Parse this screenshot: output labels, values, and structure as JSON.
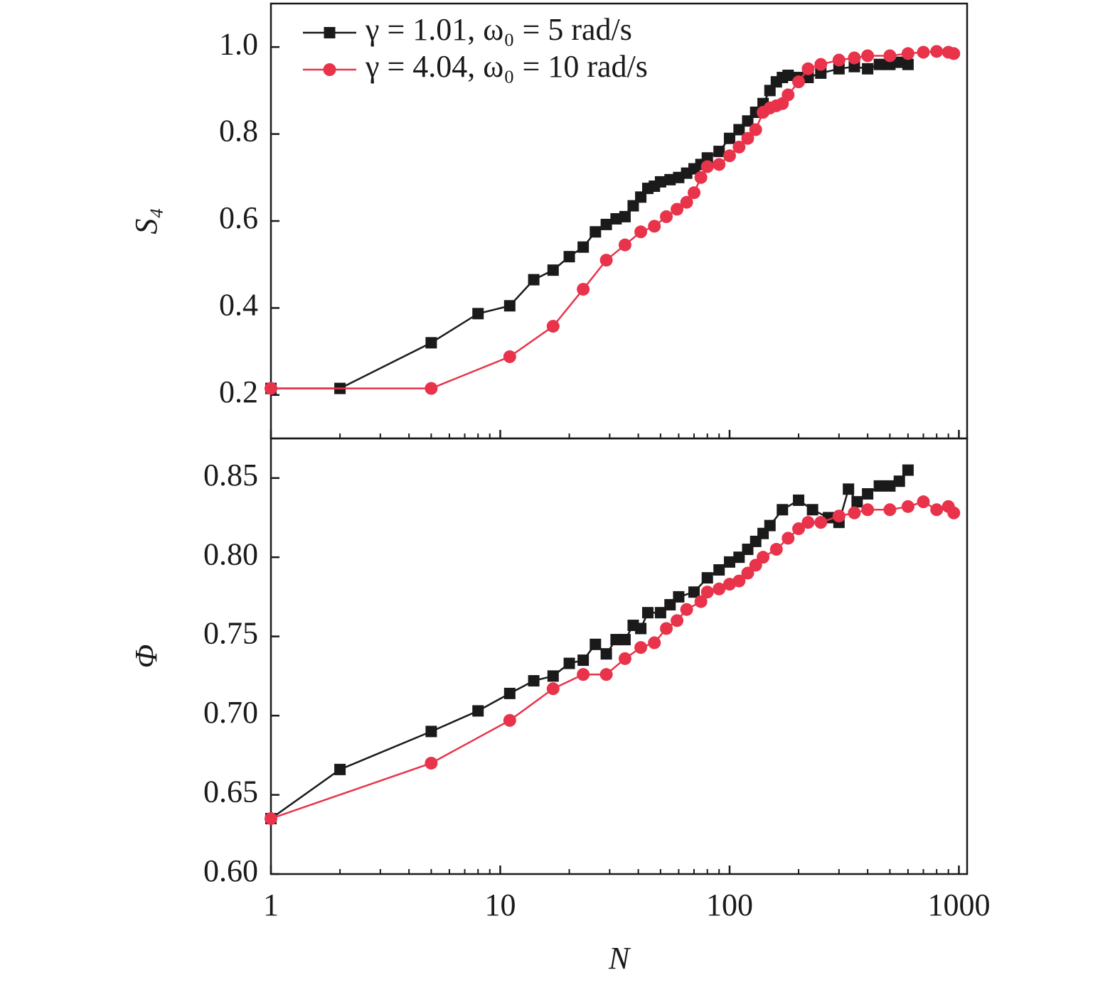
{
  "chart_data": [
    {
      "type": "line",
      "ylabel": "S₄",
      "xscale": "log",
      "xlim": [
        1,
        1086
      ],
      "ylim": [
        0.1,
        1.1
      ],
      "yticks": [
        0.2,
        0.4,
        0.6,
        0.8,
        {
          "value": 1,
          "label": "1.0"
        }
      ],
      "xticks": [
        1,
        10,
        100,
        1000
      ],
      "minor_xticks": [
        2,
        3,
        4,
        5,
        6,
        7,
        8,
        9,
        20,
        30,
        40,
        50,
        60,
        70,
        80,
        90,
        200,
        300,
        400,
        500,
        600,
        700,
        800,
        900
      ],
      "legend": "upper left",
      "series": [
        {
          "name": "γ = 1.01, ω₀ = 5 rad/s",
          "color": "#1a1a1a",
          "marker": "square",
          "x": [
            1,
            2,
            5,
            8,
            11,
            14,
            17,
            20,
            23,
            26,
            29,
            32,
            35,
            38,
            41,
            44,
            47,
            50,
            55,
            60,
            65,
            70,
            75,
            80,
            90,
            100,
            110,
            120,
            130,
            140,
            150,
            160,
            170,
            180,
            200,
            220,
            250,
            300,
            350,
            400,
            450,
            500,
            550,
            600
          ],
          "values": [
            0.215,
            0.215,
            0.32,
            0.387,
            0.405,
            0.465,
            0.487,
            0.518,
            0.54,
            0.575,
            0.592,
            0.605,
            0.61,
            0.635,
            0.655,
            0.675,
            0.68,
            0.69,
            0.695,
            0.7,
            0.71,
            0.72,
            0.73,
            0.745,
            0.76,
            0.79,
            0.81,
            0.83,
            0.85,
            0.87,
            0.9,
            0.92,
            0.93,
            0.935,
            0.93,
            0.93,
            0.94,
            0.95,
            0.955,
            0.95,
            0.96,
            0.96,
            0.965,
            0.96
          ]
        },
        {
          "name": "γ = 4.04, ω₀ = 10 rad/s",
          "color": "#e8334a",
          "marker": "circle",
          "x": [
            1,
            5,
            11,
            17,
            23,
            29,
            35,
            41,
            47,
            53,
            59,
            65,
            70,
            75,
            80,
            90,
            100,
            110,
            120,
            130,
            140,
            150,
            160,
            170,
            180,
            200,
            220,
            250,
            300,
            350,
            400,
            500,
            600,
            700,
            800,
            900,
            950
          ],
          "values": [
            0.215,
            0.215,
            0.288,
            0.358,
            0.443,
            0.51,
            0.545,
            0.575,
            0.588,
            0.61,
            0.627,
            0.643,
            0.665,
            0.7,
            0.725,
            0.73,
            0.75,
            0.77,
            0.79,
            0.81,
            0.85,
            0.86,
            0.865,
            0.87,
            0.89,
            0.92,
            0.95,
            0.96,
            0.97,
            0.975,
            0.98,
            0.98,
            0.985,
            0.988,
            0.99,
            0.988,
            0.985
          ]
        }
      ]
    },
    {
      "type": "line",
      "ylabel": "Φ",
      "xlabel": "N",
      "xscale": "log",
      "xlim": [
        1,
        1086
      ],
      "ylim": [
        0.6,
        0.875
      ],
      "yticks": [
        {
          "value": 0.6,
          "label": "0.60"
        },
        0.65,
        {
          "value": 0.7,
          "label": "0.70"
        },
        0.75,
        {
          "value": 0.8,
          "label": "0.80"
        },
        0.85
      ],
      "xticks": [
        1,
        10,
        100,
        1000
      ],
      "minor_xticks": [
        2,
        3,
        4,
        5,
        6,
        7,
        8,
        9,
        20,
        30,
        40,
        50,
        60,
        70,
        80,
        90,
        200,
        300,
        400,
        500,
        600,
        700,
        800,
        900
      ],
      "series": [
        {
          "name": "γ = 1.01, ω₀ = 5 rad/s",
          "color": "#1a1a1a",
          "marker": "square",
          "x": [
            1,
            2,
            5,
            8,
            11,
            14,
            17,
            20,
            23,
            26,
            29,
            32,
            35,
            38,
            41,
            44,
            50,
            55,
            60,
            70,
            80,
            90,
            100,
            110,
            120,
            130,
            140,
            150,
            170,
            200,
            230,
            270,
            300,
            330,
            360,
            400,
            450,
            500,
            550,
            600
          ],
          "values": [
            0.635,
            0.666,
            0.69,
            0.703,
            0.714,
            0.722,
            0.725,
            0.733,
            0.735,
            0.745,
            0.739,
            0.748,
            0.748,
            0.757,
            0.755,
            0.765,
            0.765,
            0.77,
            0.775,
            0.778,
            0.787,
            0.792,
            0.797,
            0.8,
            0.805,
            0.81,
            0.815,
            0.82,
            0.83,
            0.836,
            0.83,
            0.825,
            0.822,
            0.843,
            0.835,
            0.84,
            0.845,
            0.845,
            0.848,
            0.855
          ]
        },
        {
          "name": "γ = 4.04, ω₀ = 10 rad/s",
          "color": "#e8334a",
          "marker": "circle",
          "x": [
            1,
            5,
            11,
            17,
            23,
            29,
            35,
            41,
            47,
            53,
            59,
            65,
            75,
            80,
            90,
            100,
            110,
            120,
            130,
            140,
            160,
            180,
            200,
            220,
            250,
            300,
            350,
            400,
            500,
            600,
            700,
            800,
            900,
            950
          ],
          "values": [
            0.635,
            0.67,
            0.697,
            0.717,
            0.726,
            0.726,
            0.736,
            0.743,
            0.746,
            0.755,
            0.76,
            0.767,
            0.772,
            0.778,
            0.78,
            0.783,
            0.785,
            0.79,
            0.795,
            0.8,
            0.805,
            0.812,
            0.818,
            0.822,
            0.822,
            0.826,
            0.828,
            0.83,
            0.83,
            0.832,
            0.835,
            0.83,
            0.832,
            0.828
          ]
        }
      ]
    }
  ]
}
